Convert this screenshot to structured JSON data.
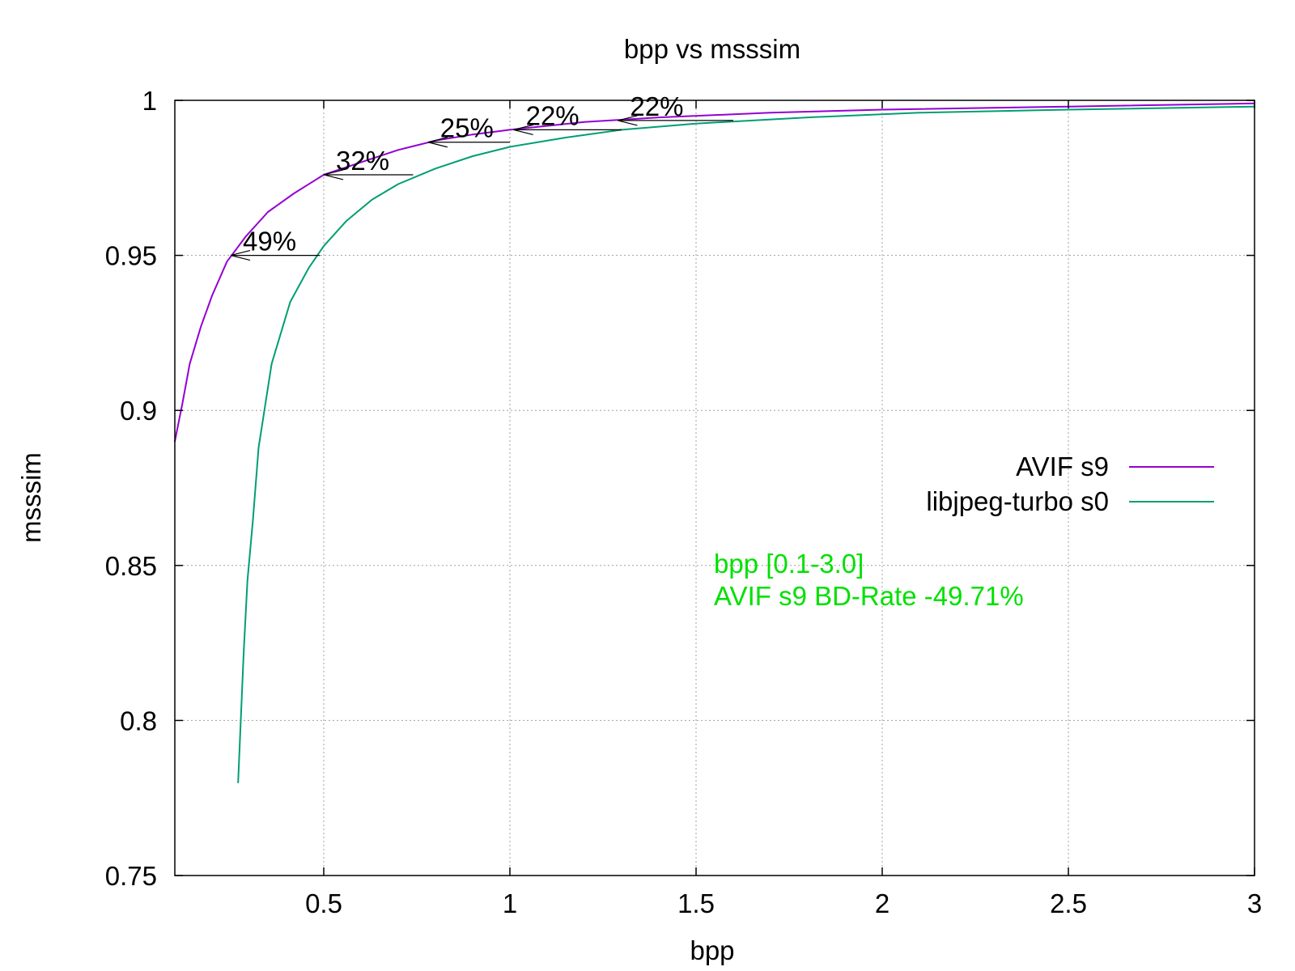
{
  "chart_data": {
    "type": "line",
    "title": "bpp vs msssim",
    "xlabel": "bpp",
    "ylabel": "msssim",
    "xlim": [
      0.1,
      3.0
    ],
    "ylim": [
      0.75,
      1.0
    ],
    "xticks": [
      {
        "value": 0.5,
        "label": "0.5"
      },
      {
        "value": 1.0,
        "label": "1"
      },
      {
        "value": 1.5,
        "label": "1.5"
      },
      {
        "value": 2.0,
        "label": "2"
      },
      {
        "value": 2.5,
        "label": "2.5"
      },
      {
        "value": 3.0,
        "label": "3"
      }
    ],
    "yticks": [
      {
        "value": 0.75,
        "label": "0.75"
      },
      {
        "value": 0.8,
        "label": "0.8"
      },
      {
        "value": 0.85,
        "label": "0.85"
      },
      {
        "value": 0.9,
        "label": "0.9"
      },
      {
        "value": 0.95,
        "label": "0.95"
      },
      {
        "value": 1.0,
        "label": "1"
      }
    ],
    "grid": true,
    "legend_position": "right",
    "series": [
      {
        "name": "AVIF s9",
        "color": "#9400d3",
        "points": [
          [
            0.1,
            0.89
          ],
          [
            0.12,
            0.902
          ],
          [
            0.14,
            0.915
          ],
          [
            0.17,
            0.927
          ],
          [
            0.2,
            0.937
          ],
          [
            0.24,
            0.948
          ],
          [
            0.29,
            0.956
          ],
          [
            0.35,
            0.964
          ],
          [
            0.42,
            0.97
          ],
          [
            0.5,
            0.976
          ],
          [
            0.6,
            0.98
          ],
          [
            0.7,
            0.984
          ],
          [
            0.8,
            0.987
          ],
          [
            0.9,
            0.989
          ],
          [
            1.0,
            0.9905
          ],
          [
            1.2,
            0.993
          ],
          [
            1.4,
            0.9945
          ],
          [
            1.7,
            0.996
          ],
          [
            2.0,
            0.997
          ],
          [
            2.5,
            0.998
          ],
          [
            3.0,
            0.999
          ]
        ]
      },
      {
        "name": "libjpeg-turbo s0",
        "color": "#009e73",
        "points": [
          [
            0.27,
            0.78
          ],
          [
            0.285,
            0.822
          ],
          [
            0.295,
            0.845
          ],
          [
            0.31,
            0.865
          ],
          [
            0.325,
            0.888
          ],
          [
            0.36,
            0.915
          ],
          [
            0.41,
            0.935
          ],
          [
            0.46,
            0.946
          ],
          [
            0.5,
            0.953
          ],
          [
            0.56,
            0.961
          ],
          [
            0.63,
            0.968
          ],
          [
            0.7,
            0.973
          ],
          [
            0.8,
            0.978
          ],
          [
            0.9,
            0.982
          ],
          [
            1.0,
            0.985
          ],
          [
            1.15,
            0.988
          ],
          [
            1.3,
            0.9905
          ],
          [
            1.5,
            0.9925
          ],
          [
            1.8,
            0.9945
          ],
          [
            2.1,
            0.996
          ],
          [
            2.5,
            0.997
          ],
          [
            3.0,
            0.998
          ]
        ]
      }
    ],
    "annotations": [
      {
        "label": "49%",
        "y": 0.95,
        "x_from": 0.49,
        "x_to": 0.25
      },
      {
        "label": "32%",
        "y": 0.976,
        "x_from": 0.74,
        "x_to": 0.5
      },
      {
        "label": "25%",
        "y": 0.9865,
        "x_from": 1.0,
        "x_to": 0.78
      },
      {
        "label": "22%",
        "y": 0.9905,
        "x_from": 1.3,
        "x_to": 1.01
      },
      {
        "label": "22%",
        "y": 0.9935,
        "x_from": 1.6,
        "x_to": 1.29
      }
    ],
    "note_color": "#00e000",
    "note_lines": [
      "bpp [0.1-3.0]",
      "AVIF s9 BD-Rate -49.71%"
    ]
  }
}
